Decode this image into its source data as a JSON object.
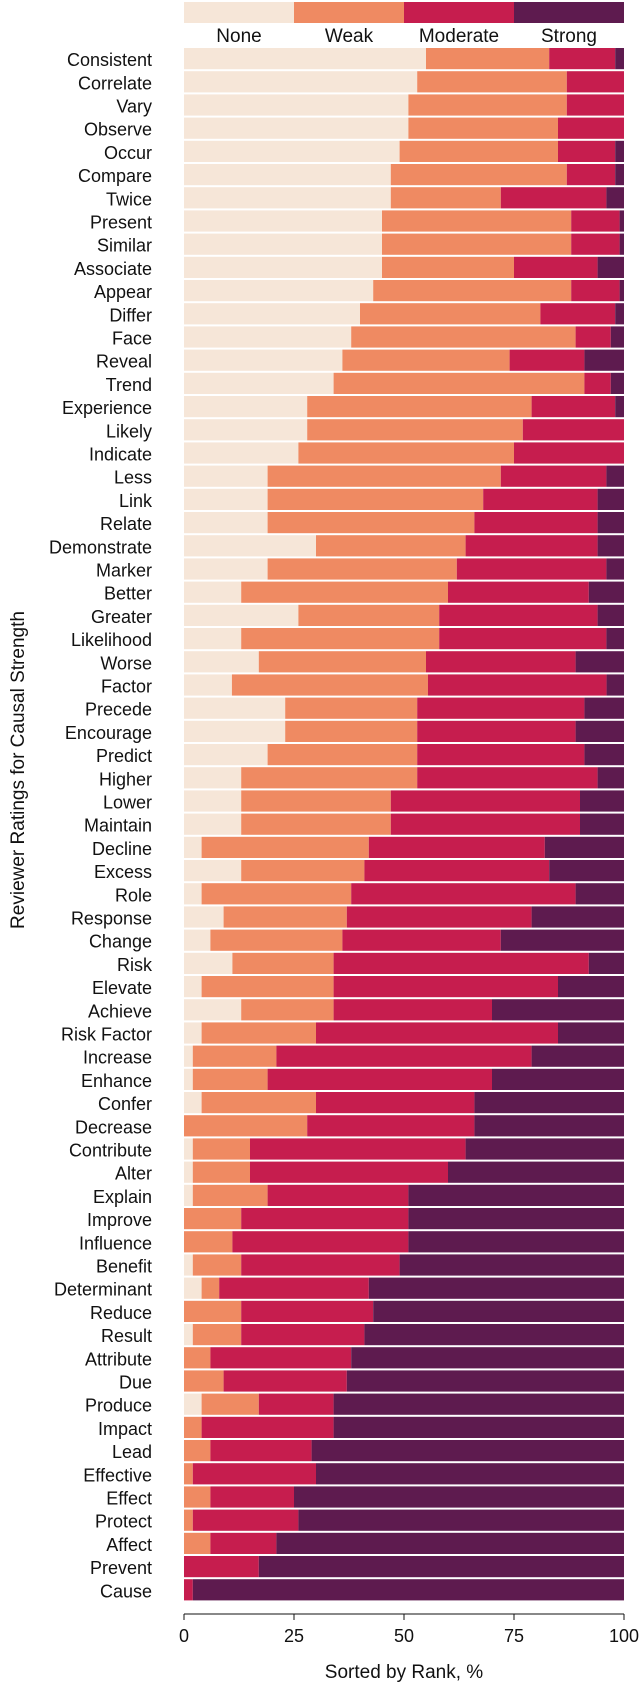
{
  "chart_data": {
    "type": "bar",
    "orientation": "horizontal",
    "stacked": true,
    "xlabel": "Sorted by Rank, %",
    "ylabel": "Reviewer Ratings for Causal Strength",
    "xlim": [
      0,
      100
    ],
    "xticks": [
      "0",
      "25",
      "50",
      "75",
      "100"
    ],
    "legend_position": "top",
    "categories": [
      "Consistent",
      "Correlate",
      "Vary",
      "Observe",
      "Occur",
      "Compare",
      "Twice",
      "Present",
      "Similar",
      "Associate",
      "Appear",
      "Differ",
      "Face",
      "Reveal",
      "Trend",
      "Experience",
      "Likely",
      "Indicate",
      "Less",
      "Link",
      "Relate",
      "Demonstrate",
      "Marker",
      "Better",
      "Greater",
      "Likelihood",
      "Worse",
      "Factor",
      "Precede",
      "Encourage",
      "Predict",
      "Higher",
      "Lower",
      "Maintain",
      "Decline",
      "Excess",
      "Role",
      "Response",
      "Change",
      "Risk",
      "Elevate",
      "Achieve",
      "Risk Factor",
      "Increase",
      "Enhance",
      "Confer",
      "Decrease",
      "Contribute",
      "Alter",
      "Explain",
      "Improve",
      "Influence",
      "Benefit",
      "Determinant",
      "Reduce",
      "Result",
      "Attribute",
      "Due",
      "Produce",
      "Impact",
      "Lead",
      "Effective",
      "Effect",
      "Protect",
      "Affect",
      "Prevent",
      "Cause"
    ],
    "series": [
      {
        "name": "None",
        "color": "#f6e6d8",
        "values": [
          55,
          53,
          51,
          51,
          49,
          47,
          47,
          45,
          45,
          45,
          43,
          40,
          38,
          36,
          34,
          28,
          28,
          26,
          19,
          19,
          19,
          30,
          19,
          13,
          26,
          13,
          17,
          11,
          23,
          23,
          19,
          13,
          13,
          13,
          4,
          13,
          4,
          9,
          6,
          11,
          4,
          13,
          4,
          2,
          2,
          4,
          0,
          2,
          2,
          2,
          0,
          0,
          2,
          4,
          0,
          2,
          0,
          0,
          4,
          0,
          0,
          0,
          0,
          0,
          0,
          0,
          0
        ]
      },
      {
        "name": "Weak",
        "color": "#ef8a62",
        "values": [
          28,
          34,
          36,
          34,
          36,
          40,
          25,
          43,
          43,
          30,
          45,
          41,
          51,
          38,
          57,
          51,
          49,
          49,
          53,
          49,
          47,
          34,
          43,
          47,
          32,
          45,
          38,
          45,
          30,
          30,
          34,
          40,
          34,
          34,
          38,
          28,
          34,
          28,
          30,
          23,
          30,
          21,
          26,
          19,
          17,
          26,
          28,
          13,
          13,
          17,
          13,
          11,
          11,
          4,
          13,
          11,
          6,
          9,
          13,
          4,
          6,
          2,
          6,
          2,
          6,
          0,
          0
        ]
      },
      {
        "name": "Moderate",
        "color": "#c61d4e",
        "values": [
          15,
          13,
          13,
          15,
          13,
          11,
          24,
          11,
          11,
          19,
          11,
          17,
          8,
          17,
          6,
          19,
          23,
          25,
          24,
          26,
          28,
          30,
          34,
          32,
          36,
          38,
          34,
          41,
          38,
          36,
          38,
          41,
          43,
          43,
          40,
          42,
          51,
          42,
          36,
          58,
          51,
          36,
          55,
          58,
          51,
          36,
          38,
          49,
          45,
          32,
          38,
          40,
          36,
          34,
          30,
          28,
          32,
          28,
          17,
          30,
          23,
          28,
          19,
          24,
          15,
          17,
          2
        ]
      },
      {
        "name": "Strong",
        "color": "#5e1b4f",
        "values": [
          2,
          0,
          0,
          0,
          2,
          2,
          4,
          1,
          1,
          6,
          1,
          2,
          3,
          9,
          3,
          2,
          0,
          0,
          4,
          6,
          6,
          6,
          4,
          8,
          6,
          4,
          11,
          4,
          9,
          11,
          9,
          6,
          10,
          10,
          18,
          17,
          11,
          21,
          28,
          8,
          15,
          30,
          15,
          21,
          30,
          34,
          34,
          36,
          40,
          49,
          49,
          49,
          51,
          58,
          57,
          59,
          62,
          63,
          66,
          66,
          71,
          70,
          75,
          74,
          79,
          83,
          98
        ]
      }
    ]
  }
}
